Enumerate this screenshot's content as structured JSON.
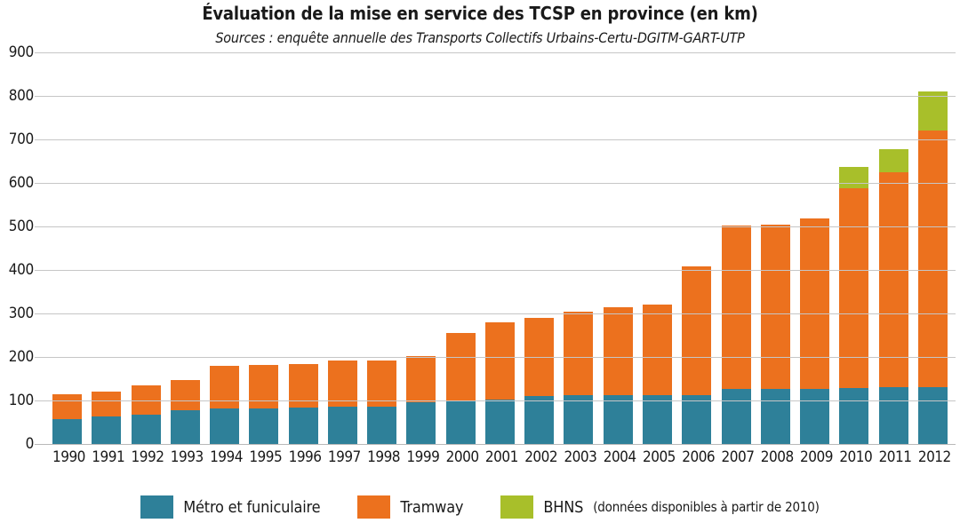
{
  "chart_data": {
    "type": "bar",
    "stacked": true,
    "title": "Évaluation de la mise en service des TCSP en province (en km)",
    "subtitle": "Sources : enquête annuelle des Transports Collectifs Urbains-Certu-DGITM-GART-UTP",
    "xlabel": "",
    "ylabel": "",
    "ylim": [
      0,
      900
    ],
    "ytick_step": 100,
    "grid": true,
    "legend_position": "bottom",
    "categories": [
      "1990",
      "1991",
      "1992",
      "1993",
      "1994",
      "1995",
      "1996",
      "1997",
      "1998",
      "1999",
      "2000",
      "2001",
      "2002",
      "2003",
      "2004",
      "2005",
      "2006",
      "2007",
      "2008",
      "2009",
      "2010",
      "2011",
      "2012"
    ],
    "series": [
      {
        "name": "Métro et funiculaire",
        "color": "#2e8099",
        "values": [
          58,
          63,
          68,
          77,
          81,
          82,
          84,
          86,
          86,
          96,
          100,
          102,
          111,
          112,
          112,
          112,
          112,
          126,
          127,
          127,
          129,
          130,
          130
        ]
      },
      {
        "name": "Tramway",
        "color": "#ec711e",
        "values": [
          56,
          58,
          67,
          69,
          99,
          99,
          99,
          106,
          106,
          107,
          156,
          178,
          178,
          193,
          202,
          208,
          296,
          376,
          378,
          392,
          459,
          494,
          590
        ]
      },
      {
        "name": "BHNS",
        "note": "(données disponibles à partir de 2010)",
        "color": "#a8bf2a",
        "values": [
          0,
          0,
          0,
          0,
          0,
          0,
          0,
          0,
          0,
          0,
          0,
          0,
          0,
          0,
          0,
          0,
          0,
          0,
          0,
          0,
          49,
          54,
          91
        ]
      }
    ],
    "totals": [
      114,
      121,
      135,
      146,
      180,
      181,
      183,
      192,
      192,
      203,
      256,
      280,
      289,
      305,
      314,
      320,
      408,
      502,
      505,
      519,
      637,
      678,
      811
    ]
  },
  "colors": {
    "metro": "#2e8099",
    "tramway": "#ec711e",
    "bhns": "#a8bf2a",
    "gridline": "#c6c6c6",
    "text": "#1a1a1a"
  }
}
